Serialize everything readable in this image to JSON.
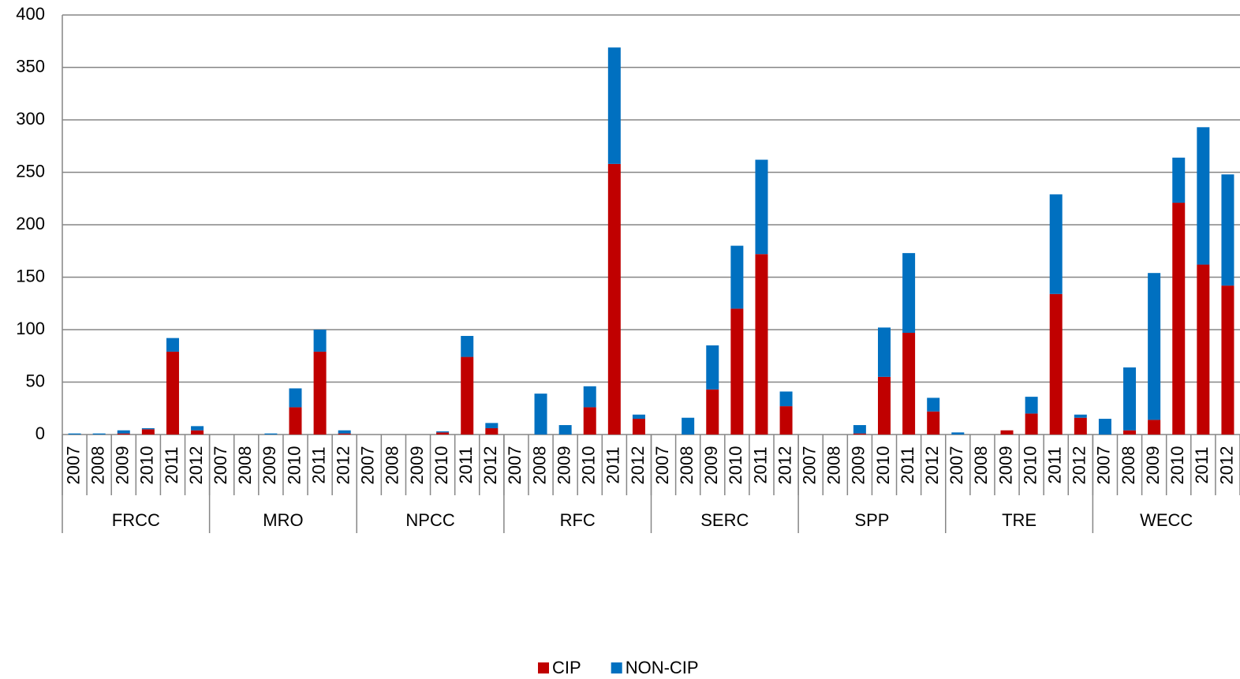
{
  "chart_data": {
    "type": "stacked_bar",
    "categories": [
      "2007",
      "2008",
      "2009",
      "2010",
      "2011",
      "2012",
      "2007",
      "2008",
      "2009",
      "2010",
      "2011",
      "2012",
      "2007",
      "2008",
      "2009",
      "2010",
      "2011",
      "2012",
      "2007",
      "2008",
      "2009",
      "2010",
      "2011",
      "2012",
      "2007",
      "2008",
      "2009",
      "2010",
      "2011",
      "2012",
      "2007",
      "2008",
      "2009",
      "2010",
      "2011",
      "2012",
      "2007",
      "2008",
      "2009",
      "2010",
      "2011",
      "2012",
      "2007",
      "2008",
      "2009",
      "2010",
      "2011",
      "2012"
    ],
    "groups": [
      "FRCC",
      "MRO",
      "NPCC",
      "RFC",
      "SERC",
      "SPP",
      "TRE",
      "WECC"
    ],
    "series": [
      {
        "name": "CIP",
        "color": "#c00000",
        "values": [
          0,
          0,
          1,
          5,
          79,
          4,
          0,
          0,
          0,
          26,
          79,
          1,
          0,
          0,
          0,
          2,
          74,
          6,
          0,
          0,
          0,
          26,
          258,
          15,
          0,
          0,
          43,
          120,
          172,
          27,
          0,
          0,
          1,
          55,
          97,
          22,
          0,
          0,
          4,
          20,
          134,
          16,
          0,
          4,
          14,
          221,
          162,
          142
        ]
      },
      {
        "name": "NON-CIP",
        "color": "#0070c0",
        "values": [
          1,
          1,
          3,
          1,
          13,
          4,
          0,
          0,
          1,
          18,
          21,
          3,
          0,
          0,
          0,
          1,
          20,
          5,
          0,
          39,
          9,
          20,
          111,
          4,
          0,
          16,
          42,
          60,
          90,
          14,
          0,
          0,
          8,
          47,
          76,
          13,
          2,
          0,
          0,
          16,
          95,
          3,
          15,
          60,
          140,
          43,
          131,
          106
        ]
      }
    ],
    "ylim": [
      0,
      400
    ],
    "yticks": [
      0,
      50,
      100,
      150,
      200,
      250,
      300,
      350,
      400
    ],
    "grid": true,
    "legend": "bottom"
  }
}
